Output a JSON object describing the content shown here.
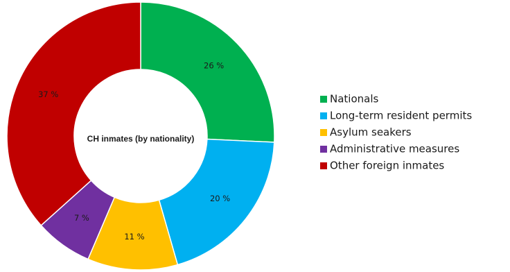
{
  "chart_data": {
    "type": "pie",
    "title": "CH inmates (by nationality)",
    "categories": [
      "Nationals",
      "Long-term resident permits",
      "Asylum seakers",
      "Administrative measures",
      "Other foreign inmates"
    ],
    "values": [
      26,
      20,
      11,
      7,
      37
    ],
    "value_labels": [
      "26 %",
      "20 %",
      "11 %",
      "7 %",
      "37 %"
    ],
    "colors": [
      "#00b050",
      "#00b0f0",
      "#ffc000",
      "#7030a0",
      "#c00000"
    ],
    "legend_placement": "right",
    "donut": true
  }
}
